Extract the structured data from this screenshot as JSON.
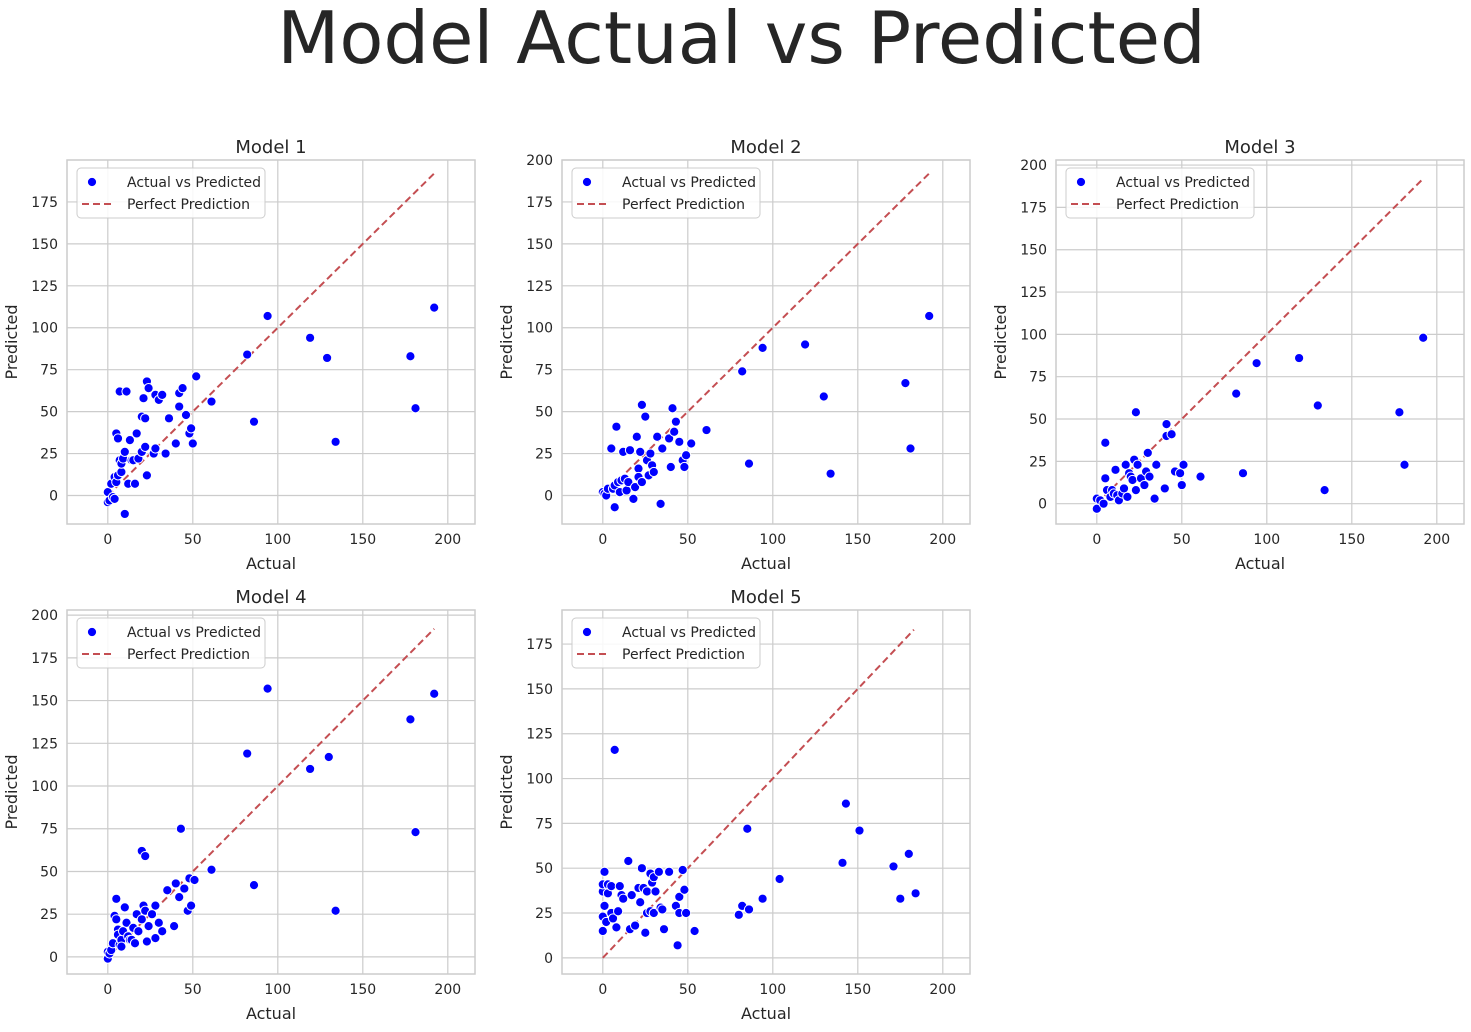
{
  "colors": {
    "points": "#0000ff",
    "line": "#c44e52",
    "grid": "#cccccc",
    "frame": "#cccccc",
    "text": "#262626"
  },
  "chart_data": {
    "title": "Model Actual vs Predicted",
    "type": "scatter",
    "legend": {
      "scatter_label": "Actual vs Predicted",
      "line_label": "Perfect Prediction",
      "placement": "top-left"
    },
    "subplots": [
      {
        "title": "Model 1",
        "xlabel": "Actual",
        "ylabel": "Predicted",
        "xlim": [
          -24,
          216
        ],
        "ylim": [
          -17,
          200
        ],
        "xticks": [
          0,
          50,
          100,
          150,
          200
        ],
        "yticks": [
          0,
          25,
          50,
          75,
          100,
          125,
          150,
          175
        ],
        "perfect_line": [
          0,
          192
        ],
        "points": [
          [
            0,
            -4
          ],
          [
            0,
            2
          ],
          [
            1,
            -3
          ],
          [
            2,
            7
          ],
          [
            3,
            -1
          ],
          [
            4,
            -2
          ],
          [
            4,
            11
          ],
          [
            5,
            37
          ],
          [
            5,
            8
          ],
          [
            6,
            12
          ],
          [
            6,
            34
          ],
          [
            7,
            62
          ],
          [
            7,
            21
          ],
          [
            8,
            14
          ],
          [
            8,
            19
          ],
          [
            9,
            22
          ],
          [
            10,
            26
          ],
          [
            10,
            -11
          ],
          [
            11,
            62
          ],
          [
            12,
            7
          ],
          [
            13,
            33
          ],
          [
            14,
            21
          ],
          [
            15,
            21
          ],
          [
            16,
            7
          ],
          [
            17,
            37
          ],
          [
            18,
            22
          ],
          [
            20,
            47
          ],
          [
            20,
            26
          ],
          [
            21,
            58
          ],
          [
            22,
            46
          ],
          [
            22,
            29
          ],
          [
            23,
            12
          ],
          [
            23,
            68
          ],
          [
            24,
            64
          ],
          [
            27,
            25
          ],
          [
            28,
            60
          ],
          [
            28,
            28
          ],
          [
            30,
            57
          ],
          [
            32,
            60
          ],
          [
            34,
            25
          ],
          [
            36,
            46
          ],
          [
            40,
            31
          ],
          [
            42,
            61
          ],
          [
            42,
            53
          ],
          [
            44,
            64
          ],
          [
            46,
            48
          ],
          [
            48,
            37
          ],
          [
            49,
            40
          ],
          [
            50,
            31
          ],
          [
            52,
            71
          ],
          [
            61,
            56
          ],
          [
            82,
            84
          ],
          [
            86,
            44
          ],
          [
            94,
            107
          ],
          [
            119,
            94
          ],
          [
            129,
            82
          ],
          [
            134,
            32
          ],
          [
            178,
            83
          ],
          [
            181,
            52
          ],
          [
            192,
            112
          ]
        ]
      },
      {
        "title": "Model 2",
        "xlabel": "Actual",
        "ylabel": "Predicted",
        "xlim": [
          -24,
          216
        ],
        "ylim": [
          -17,
          200
        ],
        "xticks": [
          0,
          50,
          100,
          150,
          200
        ],
        "yticks": [
          0,
          25,
          50,
          75,
          100,
          125,
          150,
          175,
          200
        ],
        "perfect_line": [
          0,
          192
        ],
        "points": [
          [
            0,
            2
          ],
          [
            1,
            1
          ],
          [
            2,
            0
          ],
          [
            3,
            4
          ],
          [
            5,
            28
          ],
          [
            6,
            4
          ],
          [
            7,
            -7
          ],
          [
            7,
            6
          ],
          [
            8,
            41
          ],
          [
            9,
            8
          ],
          [
            10,
            2
          ],
          [
            11,
            9
          ],
          [
            12,
            26
          ],
          [
            13,
            10
          ],
          [
            14,
            3
          ],
          [
            15,
            8
          ],
          [
            16,
            27
          ],
          [
            18,
            -2
          ],
          [
            19,
            5
          ],
          [
            20,
            35
          ],
          [
            21,
            16
          ],
          [
            21,
            11
          ],
          [
            22,
            26
          ],
          [
            23,
            54
          ],
          [
            23,
            8
          ],
          [
            25,
            47
          ],
          [
            26,
            21
          ],
          [
            27,
            12
          ],
          [
            28,
            25
          ],
          [
            29,
            18
          ],
          [
            30,
            14
          ],
          [
            32,
            35
          ],
          [
            34,
            -5
          ],
          [
            35,
            28
          ],
          [
            39,
            34
          ],
          [
            40,
            17
          ],
          [
            41,
            52
          ],
          [
            42,
            38
          ],
          [
            43,
            44
          ],
          [
            45,
            32
          ],
          [
            47,
            21
          ],
          [
            48,
            17
          ],
          [
            49,
            24
          ],
          [
            52,
            31
          ],
          [
            61,
            39
          ],
          [
            82,
            74
          ],
          [
            86,
            19
          ],
          [
            94,
            88
          ],
          [
            119,
            90
          ],
          [
            130,
            59
          ],
          [
            134,
            13
          ],
          [
            178,
            67
          ],
          [
            181,
            28
          ],
          [
            192,
            107
          ]
        ]
      },
      {
        "title": "Model 3",
        "xlabel": "Actual",
        "ylabel": "Predicted",
        "xlim": [
          -24,
          216
        ],
        "ylim": [
          -12,
          203
        ],
        "xticks": [
          0,
          50,
          100,
          150,
          200
        ],
        "yticks": [
          0,
          25,
          50,
          75,
          100,
          125,
          150,
          175,
          200
        ],
        "perfect_line": [
          0,
          192
        ],
        "points": [
          [
            0,
            -3
          ],
          [
            0,
            3
          ],
          [
            2,
            2
          ],
          [
            4,
            0
          ],
          [
            5,
            36
          ],
          [
            5,
            15
          ],
          [
            6,
            8
          ],
          [
            8,
            4
          ],
          [
            9,
            8
          ],
          [
            10,
            6
          ],
          [
            11,
            20
          ],
          [
            12,
            5
          ],
          [
            13,
            2
          ],
          [
            15,
            6
          ],
          [
            16,
            9
          ],
          [
            17,
            23
          ],
          [
            18,
            4
          ],
          [
            19,
            18
          ],
          [
            20,
            16
          ],
          [
            21,
            14
          ],
          [
            22,
            26
          ],
          [
            23,
            54
          ],
          [
            23,
            8
          ],
          [
            24,
            23
          ],
          [
            26,
            15
          ],
          [
            28,
            11
          ],
          [
            29,
            19
          ],
          [
            30,
            30
          ],
          [
            31,
            16
          ],
          [
            34,
            3
          ],
          [
            35,
            23
          ],
          [
            40,
            9
          ],
          [
            41,
            47
          ],
          [
            41,
            40
          ],
          [
            44,
            41
          ],
          [
            46,
            19
          ],
          [
            49,
            18
          ],
          [
            50,
            11
          ],
          [
            51,
            23
          ],
          [
            61,
            16
          ],
          [
            82,
            65
          ],
          [
            86,
            18
          ],
          [
            94,
            83
          ],
          [
            119,
            86
          ],
          [
            130,
            58
          ],
          [
            134,
            8
          ],
          [
            178,
            54
          ],
          [
            181,
            23
          ],
          [
            192,
            98
          ]
        ]
      },
      {
        "title": "Model 4",
        "xlabel": "Actual",
        "ylabel": "Predicted",
        "xlim": [
          -24,
          216
        ],
        "ylim": [
          -10,
          203
        ],
        "xticks": [
          0,
          50,
          100,
          150,
          200
        ],
        "yticks": [
          0,
          25,
          50,
          75,
          100,
          125,
          150,
          175,
          200
        ],
        "perfect_line": [
          0,
          192
        ],
        "points": [
          [
            0,
            -1
          ],
          [
            0,
            3
          ],
          [
            1,
            2
          ],
          [
            2,
            4
          ],
          [
            3,
            8
          ],
          [
            4,
            24
          ],
          [
            5,
            34
          ],
          [
            5,
            22
          ],
          [
            6,
            16
          ],
          [
            6,
            13
          ],
          [
            7,
            7
          ],
          [
            8,
            10
          ],
          [
            8,
            6
          ],
          [
            9,
            15
          ],
          [
            10,
            29
          ],
          [
            11,
            20
          ],
          [
            12,
            12
          ],
          [
            13,
            10
          ],
          [
            14,
            10
          ],
          [
            15,
            17
          ],
          [
            16,
            8
          ],
          [
            17,
            25
          ],
          [
            18,
            15
          ],
          [
            20,
            62
          ],
          [
            20,
            22
          ],
          [
            21,
            30
          ],
          [
            22,
            59
          ],
          [
            22,
            27
          ],
          [
            23,
            9
          ],
          [
            24,
            18
          ],
          [
            26,
            25
          ],
          [
            28,
            11
          ],
          [
            28,
            30
          ],
          [
            30,
            20
          ],
          [
            32,
            15
          ],
          [
            35,
            39
          ],
          [
            39,
            18
          ],
          [
            40,
            43
          ],
          [
            42,
            35
          ],
          [
            43,
            75
          ],
          [
            45,
            40
          ],
          [
            47,
            27
          ],
          [
            48,
            46
          ],
          [
            49,
            30
          ],
          [
            51,
            45
          ],
          [
            61,
            51
          ],
          [
            82,
            119
          ],
          [
            86,
            42
          ],
          [
            94,
            157
          ],
          [
            119,
            110
          ],
          [
            130,
            117
          ],
          [
            134,
            27
          ],
          [
            178,
            139
          ],
          [
            181,
            73
          ],
          [
            192,
            154
          ]
        ]
      },
      {
        "title": "Model 5",
        "xlabel": "Actual",
        "ylabel": "Predicted",
        "xlim": [
          -24,
          216
        ],
        "ylim": [
          -9,
          194
        ],
        "xticks": [
          0,
          50,
          100,
          150,
          200
        ],
        "yticks": [
          0,
          25,
          50,
          75,
          100,
          125,
          150,
          175
        ],
        "perfect_line": [
          0,
          183
        ],
        "points": [
          [
            0,
            15
          ],
          [
            0,
            23
          ],
          [
            0,
            37
          ],
          [
            0,
            41
          ],
          [
            1,
            48
          ],
          [
            1,
            29
          ],
          [
            2,
            20
          ],
          [
            3,
            36
          ],
          [
            3,
            41
          ],
          [
            5,
            25
          ],
          [
            5,
            40
          ],
          [
            6,
            22
          ],
          [
            7,
            116
          ],
          [
            8,
            17
          ],
          [
            9,
            26
          ],
          [
            10,
            40
          ],
          [
            11,
            35
          ],
          [
            12,
            33
          ],
          [
            15,
            54
          ],
          [
            16,
            16
          ],
          [
            17,
            35
          ],
          [
            19,
            18
          ],
          [
            21,
            39
          ],
          [
            22,
            31
          ],
          [
            23,
            50
          ],
          [
            24,
            39
          ],
          [
            25,
            14
          ],
          [
            26,
            25
          ],
          [
            26,
            37
          ],
          [
            28,
            47
          ],
          [
            28,
            26
          ],
          [
            29,
            42
          ],
          [
            30,
            45
          ],
          [
            30,
            25
          ],
          [
            31,
            37
          ],
          [
            33,
            48
          ],
          [
            34,
            28
          ],
          [
            35,
            27
          ],
          [
            36,
            16
          ],
          [
            39,
            48
          ],
          [
            43,
            29
          ],
          [
            44,
            7
          ],
          [
            45,
            25
          ],
          [
            45,
            34
          ],
          [
            47,
            49
          ],
          [
            48,
            38
          ],
          [
            49,
            25
          ],
          [
            54,
            15
          ],
          [
            80,
            24
          ],
          [
            82,
            29
          ],
          [
            85,
            72
          ],
          [
            86,
            27
          ],
          [
            94,
            33
          ],
          [
            104,
            44
          ],
          [
            141,
            53
          ],
          [
            143,
            86
          ],
          [
            151,
            71
          ],
          [
            171,
            51
          ],
          [
            175,
            33
          ],
          [
            180,
            58
          ],
          [
            184,
            36
          ]
        ]
      }
    ]
  }
}
